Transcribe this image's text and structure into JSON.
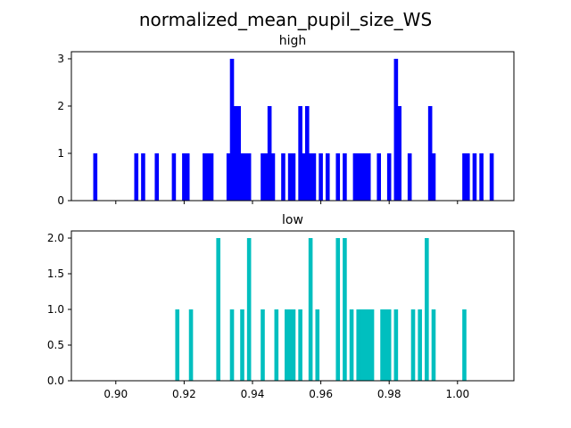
{
  "figure": {
    "title": "normalized_mean_pupil_size_WS"
  },
  "chart_data": [
    {
      "type": "bar",
      "title": "high",
      "color": "#0000ff",
      "bin_width": 0.0012,
      "xlim": [
        0.887,
        1.0165
      ],
      "ylim": [
        0,
        3.15
      ],
      "xticks": [
        0.9,
        0.92,
        0.94,
        0.96,
        0.98,
        1.0
      ],
      "xtick_labels_shown": false,
      "yticks": [
        0,
        1,
        2,
        3
      ],
      "ytick_labels": [
        "0",
        "1",
        "2",
        "3"
      ],
      "x": [
        0.894,
        0.906,
        0.908,
        0.912,
        0.917,
        0.92,
        0.921,
        0.926,
        0.927,
        0.928,
        0.933,
        0.934,
        0.935,
        0.936,
        0.937,
        0.938,
        0.939,
        0.943,
        0.944,
        0.945,
        0.946,
        0.949,
        0.951,
        0.952,
        0.954,
        0.955,
        0.956,
        0.957,
        0.958,
        0.96,
        0.962,
        0.965,
        0.967,
        0.97,
        0.971,
        0.972,
        0.973,
        0.974,
        0.977,
        0.98,
        0.982,
        0.983,
        0.986,
        0.992,
        0.993,
        1.002,
        1.003,
        1.005,
        1.007,
        1.01
      ],
      "values": [
        1,
        1,
        1,
        1,
        1,
        1,
        1,
        1,
        1,
        1,
        1,
        3,
        2,
        2,
        1,
        1,
        1,
        1,
        1,
        2,
        1,
        1,
        1,
        1,
        2,
        1,
        2,
        1,
        1,
        1,
        1,
        1,
        1,
        1,
        1,
        1,
        1,
        1,
        1,
        1,
        3,
        2,
        1,
        2,
        1,
        1,
        1,
        1,
        1,
        1
      ]
    },
    {
      "type": "bar",
      "title": "low",
      "color": "#00bfbf",
      "bin_width": 0.0012,
      "xlim": [
        0.887,
        1.0165
      ],
      "ylim": [
        0,
        2.1
      ],
      "xticks": [
        0.9,
        0.92,
        0.94,
        0.96,
        0.98,
        1.0
      ],
      "xtick_labels": [
        "0.90",
        "0.92",
        "0.94",
        "0.96",
        "0.98",
        "1.00"
      ],
      "yticks": [
        0,
        0.5,
        1.0,
        1.5,
        2.0
      ],
      "ytick_labels": [
        "0.0",
        "0.5",
        "1.0",
        "1.5",
        "2.0"
      ],
      "x": [
        0.918,
        0.922,
        0.93,
        0.934,
        0.937,
        0.939,
        0.943,
        0.947,
        0.95,
        0.951,
        0.952,
        0.954,
        0.957,
        0.959,
        0.965,
        0.967,
        0.969,
        0.971,
        0.972,
        0.973,
        0.974,
        0.975,
        0.978,
        0.979,
        0.98,
        0.982,
        0.987,
        0.989,
        0.991,
        0.993,
        1.002
      ],
      "values": [
        1,
        1,
        2,
        1,
        1,
        2,
        1,
        1,
        1,
        1,
        1,
        1,
        2,
        1,
        2,
        2,
        1,
        1,
        1,
        1,
        1,
        1,
        1,
        1,
        1,
        1,
        1,
        1,
        2,
        1,
        1
      ]
    }
  ]
}
